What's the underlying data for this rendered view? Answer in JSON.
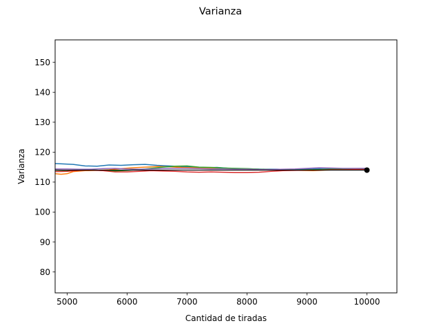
{
  "chart_data": {
    "type": "line",
    "title": "Varianza",
    "xlabel": "Cantidad de tiradas",
    "ylabel": "Varianza",
    "xlim": [
      4800,
      10500
    ],
    "ylim": [
      73,
      157.5
    ],
    "grid": false,
    "x_ticks": [
      5000,
      6000,
      7000,
      8000,
      9000,
      10000
    ],
    "y_ticks": [
      80,
      90,
      100,
      110,
      120,
      130,
      140,
      150
    ],
    "reference_line": {
      "y": 114.0,
      "color": "#000000",
      "x": [
        4800,
        10000
      ]
    },
    "end_marker": {
      "x": 10000,
      "y": 114.0,
      "color": "#000000"
    },
    "series": [
      {
        "color": "#1f77b4",
        "x": [
          4800,
          5100,
          5300,
          5500,
          5700,
          5900,
          6100,
          6300,
          6500,
          6700,
          6900,
          7100,
          7300,
          7500,
          7700,
          7900,
          8100,
          8300,
          8500,
          8700,
          8900,
          9100,
          9300,
          9500,
          9700,
          10000
        ],
        "y": [
          116.2,
          115.9,
          115.4,
          115.3,
          115.7,
          115.6,
          115.8,
          115.9,
          115.6,
          115.4,
          115.2,
          115.0,
          114.8,
          114.9,
          114.6,
          114.5,
          114.4,
          114.3,
          114.3,
          114.2,
          114.3,
          114.4,
          114.6,
          114.5,
          114.5,
          114.6
        ]
      },
      {
        "color": "#ff7f0e",
        "x": [
          4800,
          4900,
          5000,
          5100,
          5300,
          5500,
          5700,
          5900,
          6100,
          6300,
          6500,
          6700,
          6900,
          7100,
          7300,
          7500,
          7700,
          7900,
          8100,
          8300,
          8500,
          8700,
          8900,
          9100,
          9300,
          9500,
          9700,
          10000
        ],
        "y": [
          112.8,
          112.6,
          112.8,
          113.5,
          113.8,
          113.9,
          114.1,
          114.5,
          114.8,
          115.0,
          115.2,
          115.1,
          114.9,
          114.8,
          114.7,
          114.6,
          114.4,
          114.4,
          114.3,
          114.2,
          114.1,
          114.0,
          113.9,
          113.8,
          114.0,
          114.1,
          114.2,
          114.3
        ]
      },
      {
        "color": "#2ca02c",
        "x": [
          4800,
          5000,
          5200,
          5400,
          5600,
          5800,
          6000,
          6200,
          6400,
          6600,
          6800,
          7000,
          7200,
          7400,
          7600,
          7800,
          8000,
          8200,
          8400,
          8600,
          8800,
          9000,
          9200,
          9400,
          9600,
          9800,
          10000
        ],
        "y": [
          114.0,
          113.9,
          114.0,
          114.1,
          113.8,
          113.7,
          113.9,
          114.2,
          114.6,
          115.0,
          115.3,
          115.4,
          115.0,
          114.9,
          114.7,
          114.6,
          114.5,
          114.3,
          114.2,
          114.1,
          114.0,
          114.1,
          114.2,
          114.3,
          114.3,
          114.2,
          114.3
        ]
      },
      {
        "color": "#d62728",
        "x": [
          4800,
          5000,
          5200,
          5400,
          5600,
          5800,
          6000,
          6200,
          6400,
          6600,
          6800,
          7000,
          7200,
          7400,
          7600,
          7800,
          8000,
          8200,
          8400,
          8600,
          8800,
          9000,
          9200,
          9400,
          9600,
          9800,
          10000
        ],
        "y": [
          113.5,
          113.6,
          113.9,
          114.0,
          113.8,
          113.4,
          113.4,
          113.6,
          113.8,
          113.7,
          113.6,
          113.4,
          113.3,
          113.4,
          113.3,
          113.2,
          113.2,
          113.3,
          113.6,
          113.8,
          113.9,
          114.0,
          114.0,
          114.1,
          114.1,
          114.2,
          114.2
        ]
      },
      {
        "color": "#9467bd",
        "x": [
          4800,
          5000,
          5200,
          5400,
          5600,
          5800,
          6000,
          6200,
          6400,
          6600,
          6800,
          7000,
          7200,
          7400,
          7600,
          7800,
          8000,
          8200,
          8400,
          8600,
          8800,
          9000,
          9200,
          9400,
          9600,
          9800,
          10000
        ],
        "y": [
          114.4,
          114.4,
          114.3,
          114.3,
          114.5,
          114.6,
          114.4,
          114.3,
          114.4,
          114.5,
          114.6,
          114.6,
          114.5,
          114.4,
          114.4,
          114.3,
          114.3,
          114.2,
          114.2,
          114.3,
          114.4,
          114.6,
          114.8,
          114.7,
          114.6,
          114.6,
          114.6
        ]
      }
    ]
  }
}
